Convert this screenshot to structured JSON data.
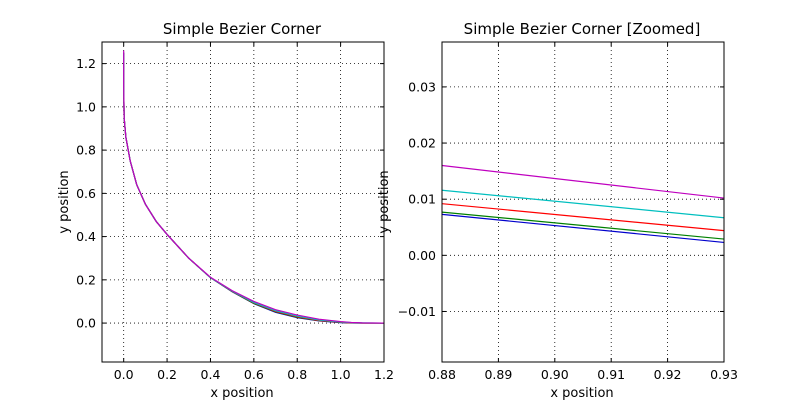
{
  "chart_data": [
    {
      "type": "line",
      "title": "Simple Bezier Corner",
      "xlabel": "x position",
      "ylabel": "y position",
      "xlim": [
        -0.1,
        1.2
      ],
      "ylim": [
        -0.18,
        1.3
      ],
      "xticks": [
        "0.0",
        "0.2",
        "0.4",
        "0.6",
        "0.8",
        "1.0",
        "1.2"
      ],
      "yticks": [
        "0.0",
        "0.2",
        "0.4",
        "0.6",
        "0.8",
        "1.0",
        "1.2"
      ],
      "xtick_values": [
        0.0,
        0.2,
        0.4,
        0.6,
        0.8,
        1.0,
        1.2
      ],
      "ytick_values": [
        0.0,
        0.2,
        0.4,
        0.6,
        0.8,
        1.0,
        1.2
      ],
      "grid": true,
      "series": [
        {
          "color": "#0000cc",
          "x": [
            0.0,
            0.0,
            0.002,
            0.01,
            0.03,
            0.06,
            0.1,
            0.15,
            0.2,
            0.3,
            0.4,
            0.5,
            0.6,
            0.7,
            0.8,
            0.9,
            1.0,
            1.05,
            1.1,
            1.2
          ],
          "y": [
            1.25,
            1.1,
            0.95,
            0.86,
            0.75,
            0.64,
            0.55,
            0.47,
            0.41,
            0.3,
            0.21,
            0.145,
            0.09,
            0.05,
            0.025,
            0.01,
            0.002,
            0.0,
            0.0,
            0.0
          ]
        },
        {
          "color": "#008000",
          "x": [
            0.0,
            0.0,
            0.002,
            0.01,
            0.03,
            0.06,
            0.1,
            0.15,
            0.2,
            0.3,
            0.4,
            0.5,
            0.6,
            0.7,
            0.8,
            0.9,
            1.0,
            1.05,
            1.1,
            1.2
          ],
          "y": [
            1.25,
            1.1,
            0.95,
            0.86,
            0.75,
            0.64,
            0.55,
            0.47,
            0.41,
            0.3,
            0.21,
            0.146,
            0.091,
            0.052,
            0.027,
            0.011,
            0.003,
            0.001,
            0.0,
            0.0
          ]
        },
        {
          "color": "#ff0000",
          "x": [
            0.0,
            0.0,
            0.002,
            0.01,
            0.03,
            0.06,
            0.1,
            0.15,
            0.2,
            0.3,
            0.4,
            0.5,
            0.6,
            0.7,
            0.8,
            0.9,
            1.0,
            1.05,
            1.1,
            1.2
          ],
          "y": [
            1.25,
            1.1,
            0.95,
            0.86,
            0.75,
            0.64,
            0.55,
            0.47,
            0.41,
            0.3,
            0.21,
            0.147,
            0.093,
            0.054,
            0.029,
            0.012,
            0.004,
            0.001,
            0.0,
            0.0
          ]
        },
        {
          "color": "#00bfbf",
          "x": [
            0.0,
            0.0,
            0.002,
            0.01,
            0.03,
            0.06,
            0.1,
            0.15,
            0.2,
            0.3,
            0.4,
            0.5,
            0.6,
            0.7,
            0.8,
            0.9,
            1.0,
            1.05,
            1.1,
            1.2
          ],
          "y": [
            1.25,
            1.1,
            0.95,
            0.86,
            0.75,
            0.64,
            0.55,
            0.47,
            0.41,
            0.3,
            0.21,
            0.148,
            0.095,
            0.057,
            0.032,
            0.014,
            0.005,
            0.002,
            0.001,
            0.0
          ]
        },
        {
          "color": "#bf00bf",
          "x": [
            0.0,
            0.0,
            0.002,
            0.01,
            0.03,
            0.06,
            0.1,
            0.15,
            0.2,
            0.3,
            0.4,
            0.5,
            0.6,
            0.7,
            0.8,
            0.9,
            1.0,
            1.05,
            1.1,
            1.2
          ],
          "y": [
            1.26,
            1.1,
            0.95,
            0.86,
            0.75,
            0.64,
            0.55,
            0.47,
            0.41,
            0.3,
            0.212,
            0.15,
            0.1,
            0.062,
            0.037,
            0.018,
            0.007,
            0.003,
            0.001,
            0.0
          ]
        }
      ]
    },
    {
      "type": "line",
      "title": "Simple Bezier Corner [Zoomed]",
      "xlabel": "x position",
      "ylabel": "y position",
      "xlim": [
        0.88,
        0.93
      ],
      "ylim": [
        -0.019,
        0.038
      ],
      "xticks": [
        "0.88",
        "0.89",
        "0.90",
        "0.91",
        "0.92",
        "0.93"
      ],
      "yticks": [
        "−0.01",
        "0.00",
        "0.01",
        "0.02",
        "0.03"
      ],
      "xtick_values": [
        0.88,
        0.89,
        0.9,
        0.91,
        0.92,
        0.93
      ],
      "ytick_values": [
        -0.01,
        0.0,
        0.01,
        0.02,
        0.03
      ],
      "grid": true,
      "series": [
        {
          "color": "#0000cc",
          "x": [
            0.88,
            0.93
          ],
          "y": [
            0.0073,
            0.0023
          ]
        },
        {
          "color": "#008000",
          "x": [
            0.88,
            0.93
          ],
          "y": [
            0.0077,
            0.0029
          ]
        },
        {
          "color": "#ff0000",
          "x": [
            0.88,
            0.93
          ],
          "y": [
            0.0092,
            0.0044
          ]
        },
        {
          "color": "#00bfbf",
          "x": [
            0.88,
            0.93
          ],
          "y": [
            0.0116,
            0.0067
          ]
        },
        {
          "color": "#bf00bf",
          "x": [
            0.88,
            0.93
          ],
          "y": [
            0.016,
            0.0102
          ]
        }
      ]
    }
  ]
}
